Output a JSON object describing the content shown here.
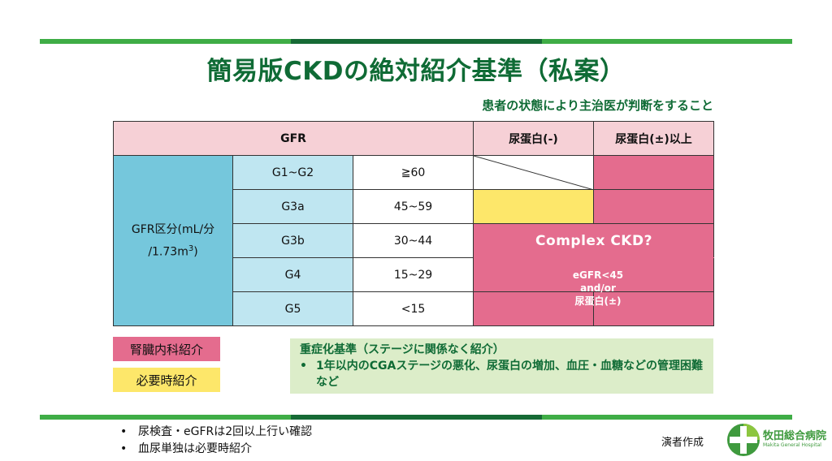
{
  "title": "簡易版CKDの絶対紹介基準（私案）",
  "subtitle": "患者の状態により主治医が判断をすること",
  "table": {
    "header": {
      "gfr": "GFR",
      "protein_neg": "尿蛋白(-)",
      "protein_pos": "尿蛋白(±)以上"
    },
    "group_label_line1": "GFR区分(mL/分",
    "group_label_line2": "/1.73m",
    "group_label_sup": "3",
    "group_label_end": ")",
    "rows": [
      {
        "stage": "G1~G2",
        "range": "≧60"
      },
      {
        "stage": "G3a",
        "range": "45~59"
      },
      {
        "stage": "G3b",
        "range": "30~44"
      },
      {
        "stage": "G4",
        "range": "15~29"
      },
      {
        "stage": "G5",
        "range": "<15"
      }
    ],
    "overlay_complex": "Complex CKD?",
    "overlay_egfr_1": "eGFR<45",
    "overlay_egfr_2": "and/or",
    "overlay_egfr_3": "尿蛋白(±)"
  },
  "legend": {
    "nephrology": "腎臓内科紹介",
    "as_needed": "必要時紹介"
  },
  "criteria": {
    "heading": "重症化基準（ステージに関係なく紹介）",
    "bullet": "•",
    "item": "1年以内のCGAステージの悪化、尿蛋白の増加、血圧・血糖などの管理困難など"
  },
  "notes": {
    "bullet": "•",
    "items": [
      "尿検査・eGFRは2回以上行い確認",
      "血尿単独は必要時紹介"
    ]
  },
  "author": "演者作成",
  "logo": {
    "name_ja": "牧田総合病院",
    "name_en": "Makita General Hospital"
  },
  "colors": {
    "green_light": "#3fad46",
    "green_dark": "#166a35",
    "pink": "#e46c8e",
    "yellow": "#fde76a",
    "blue": "#75c7dc",
    "blue_light": "#bfe6f1",
    "header_pink": "#f6d0d6",
    "criteria_bg": "#dcedc9"
  }
}
